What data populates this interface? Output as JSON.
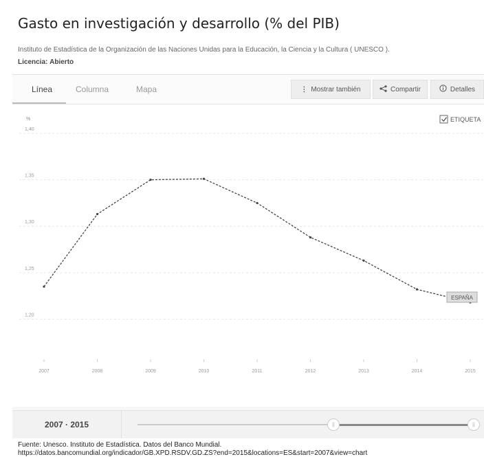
{
  "page": {
    "title": "Gasto en investigación y desarrollo (% del PIB)",
    "subtitle": "Instituto de Estadística de la Organización de las Naciones Unidas para la Educación, la Ciencia y la Cultura ( UNESCO ).",
    "license_label": "Licencia:",
    "license_value": "Abierto"
  },
  "tabs": [
    {
      "label": "Línea",
      "active": true
    },
    {
      "label": "Columna",
      "active": false
    },
    {
      "label": "Mapa",
      "active": false
    }
  ],
  "toolbar": {
    "show_also": "Mostrar también",
    "share": "Compartir",
    "details": "Detalles"
  },
  "chart_labels": {
    "checkbox_label": "ETIQUETA",
    "series_tag": "ESPAÑA"
  },
  "range": {
    "label": "2007 · 2015",
    "start": 2007,
    "end": 2015
  },
  "source": {
    "line1": "Fuente: Unesco. Instituto de Estadística. Datos del Banco Mundial.",
    "line2": "https://datos.bancomundial.org/indicador/GB.XPD.RSDV.GD.ZS?end=2015&locations=ES&start=2007&view=chart"
  },
  "colors": {
    "line": "#444444",
    "grid": "#e6e6e6",
    "accent": "#888888"
  },
  "chart_data": {
    "type": "line",
    "ylabel": "%",
    "x": [
      "2007",
      "2008",
      "2009",
      "2010",
      "2011",
      "2012",
      "2013",
      "2014",
      "2015"
    ],
    "series": [
      {
        "name": "ESPAÑA",
        "values": [
          1.235,
          1.313,
          1.35,
          1.351,
          1.325,
          1.288,
          1.263,
          1.232,
          1.218
        ]
      }
    ],
    "yticks": [
      "1,40",
      "1,35",
      "1,30",
      "1,25",
      "1,20"
    ],
    "ytick_values": [
      1.4,
      1.35,
      1.3,
      1.25,
      1.2
    ],
    "ylim": [
      1.15,
      1.42
    ],
    "grid": true
  }
}
